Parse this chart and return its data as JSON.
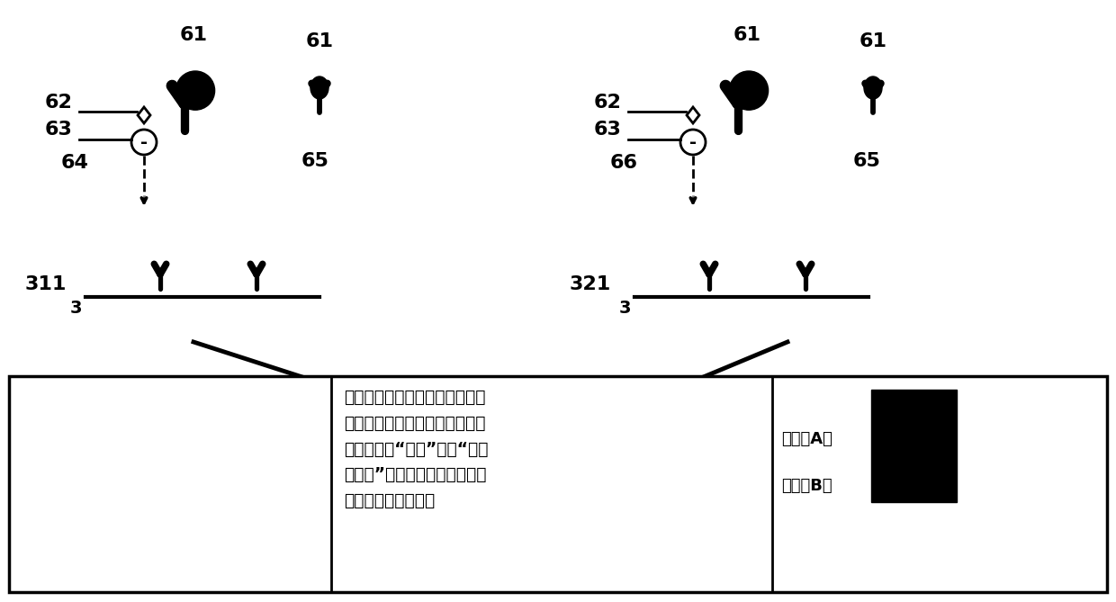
{
  "bg_color": "#ffffff",
  "text_color": "#000000",
  "bottom_text": "将捕获抗体固定在检测线，在量\n子点上标记抗体构成荧光探针，\n与检测抗原“桥连”形成“双抗\n体夹心”免疫复合物，荧光探针\n积累形成检测信号。",
  "label_A": "检测线A－",
  "label_B": "检测线B－"
}
